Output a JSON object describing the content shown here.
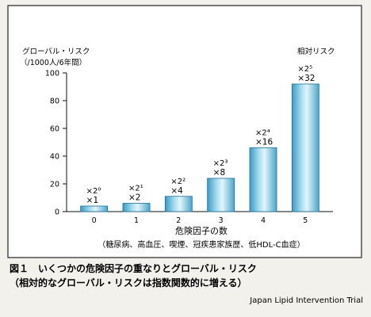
{
  "chart_data": {
    "type": "bar",
    "categories": [
      "0",
      "1",
      "2",
      "3",
      "4",
      "5"
    ],
    "values": [
      4,
      6,
      11,
      24,
      46,
      92
    ],
    "ylim": [
      0,
      100
    ],
    "yticks": [
      0,
      20,
      40,
      60,
      80,
      100
    ],
    "ylabel_line1": "グローバル・リスク",
    "ylabel_line2": "（/1000人/6年間）",
    "right_label": "相対リスク",
    "xlabel": "危険因子の数",
    "xlabel_note": "（糖尿病、高血圧、喫煙、冠疾患家族歴、低HDL-C血症）",
    "relative_risk": [
      {
        "power": "×2⁰",
        "multiplier": "×1"
      },
      {
        "power": "×2¹",
        "multiplier": "×2"
      },
      {
        "power": "×2²",
        "multiplier": "×4"
      },
      {
        "power": "×2³",
        "multiplier": "×8"
      },
      {
        "power": "×2⁴",
        "multiplier": "×16"
      },
      {
        "power": "×2⁵",
        "multiplier": "×32"
      }
    ],
    "grid": false,
    "bar_color": "#7ec7df"
  },
  "caption": {
    "line1": "図１　いくつかの危険因子の重なりとグローバル・リスク",
    "line2": "（相対的なグローバル・リスクは指数関数的に増える）",
    "source": "Japan Lipid Intervention Trial"
  }
}
